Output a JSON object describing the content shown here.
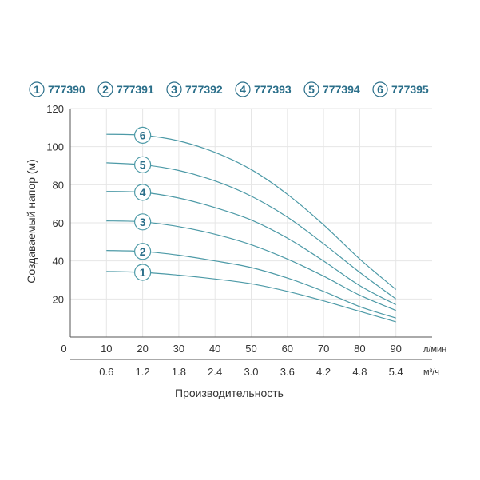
{
  "colors": {
    "accent": "#2b6f8a",
    "curve": "#4d9aa7",
    "grid": "#e6e6e6",
    "axis": "#555555"
  },
  "chart_data": {
    "type": "line",
    "ylabel": "Создаваемый напор (м)",
    "xlabel": "Производительность",
    "x_unit_primary": "л/мин",
    "x_unit_secondary": "м³/ч",
    "x_origin_label": "0",
    "xlim": [
      0,
      100
    ],
    "ylim": [
      0,
      120
    ],
    "x_ticks": [
      10,
      20,
      30,
      40,
      50,
      60,
      70,
      80,
      90
    ],
    "x_tick_labels": [
      "10",
      "20",
      "30",
      "40",
      "50",
      "60",
      "70",
      "80",
      "90"
    ],
    "x2_tick_labels": [
      "0.6",
      "1.2",
      "1.8",
      "2.4",
      "3.0",
      "3.6",
      "4.2",
      "4.8",
      "5.4"
    ],
    "y_ticks": [
      20,
      40,
      60,
      80,
      100,
      120
    ],
    "y_tick_labels": [
      "20",
      "40",
      "60",
      "80",
      "100",
      "120"
    ],
    "grid": true,
    "legend_position": "top",
    "legend": [
      {
        "num": "1",
        "label": "777390"
      },
      {
        "num": "2",
        "label": "777391"
      },
      {
        "num": "3",
        "label": "777392"
      },
      {
        "num": "4",
        "label": "777393"
      },
      {
        "num": "5",
        "label": "777394"
      },
      {
        "num": "6",
        "label": "777395"
      }
    ],
    "series": [
      {
        "tag": "1",
        "x": [
          10,
          20,
          30,
          40,
          50,
          60,
          70,
          80,
          90
        ],
        "y": [
          34.5,
          34,
          32.5,
          30.5,
          28,
          24,
          19,
          13.5,
          8
        ]
      },
      {
        "tag": "2",
        "x": [
          10,
          20,
          30,
          40,
          50,
          60,
          70,
          80,
          90
        ],
        "y": [
          45.5,
          45,
          43,
          40,
          36.5,
          31,
          24,
          16,
          10
        ]
      },
      {
        "tag": "3",
        "x": [
          10,
          20,
          30,
          40,
          50,
          60,
          70,
          80,
          90
        ],
        "y": [
          61,
          60.5,
          58,
          54,
          48.5,
          41,
          32,
          22,
          14
        ]
      },
      {
        "tag": "4",
        "x": [
          10,
          20,
          30,
          40,
          50,
          60,
          70,
          80,
          90
        ],
        "y": [
          76.5,
          76,
          73,
          68,
          61.5,
          52,
          40,
          27,
          17
        ]
      },
      {
        "tag": "5",
        "x": [
          10,
          20,
          30,
          40,
          50,
          60,
          70,
          80,
          90
        ],
        "y": [
          91.5,
          90.5,
          87.5,
          82,
          74,
          63,
          49,
          34,
          20
        ]
      },
      {
        "tag": "6",
        "x": [
          10,
          20,
          30,
          40,
          50,
          60,
          70,
          80,
          90
        ],
        "y": [
          106.5,
          106,
          103,
          97,
          88,
          75,
          59,
          41,
          25
        ]
      }
    ]
  }
}
